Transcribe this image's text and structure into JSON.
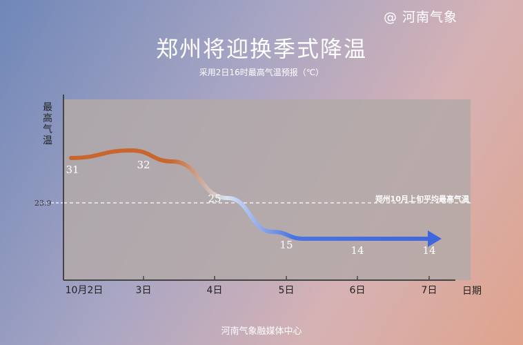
{
  "watermark": "@ 河南气象",
  "title": "郑州将迎换季式降温",
  "subtitle": "采用2日16时最高气温预报（℃）",
  "footer": "河南气象融媒体中心",
  "chart_data": {
    "type": "line",
    "title": "郑州将迎换季式降温",
    "subtitle": "采用2日16时最高气温预报（℃）",
    "xlabel": "日期",
    "ylabel": "最高气温",
    "categories": [
      "10月2日",
      "3日",
      "4日",
      "5日",
      "6日",
      "7日"
    ],
    "series": [
      {
        "values": [
          31,
          32,
          25,
          15,
          14,
          14
        ]
      }
    ],
    "data_labels": [
      "31",
      "32",
      "25",
      "15",
      "14",
      "14"
    ],
    "ylim": [
      0,
      40
    ],
    "grid": false,
    "reference_line": {
      "value": 23.9,
      "tick_label": "23.9",
      "label": "郑州10月上旬平均最高气温"
    },
    "colors": {
      "warm": "#c8662e",
      "cool": "#3f6ae0",
      "plot_bg": "#b3a9a8"
    }
  }
}
